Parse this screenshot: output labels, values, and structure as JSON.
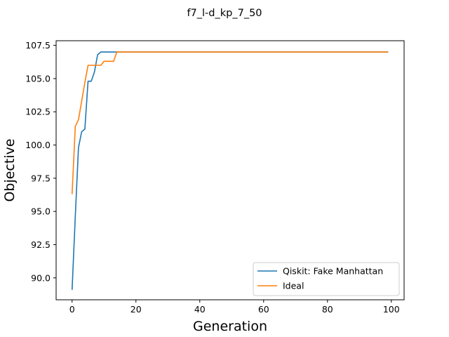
{
  "chart_data": {
    "type": "line",
    "title": "f7_l-d_kp_7_50",
    "xlabel": "Generation",
    "ylabel": "Objective",
    "xlim": [
      -5,
      104
    ],
    "ylim": [
      88.35,
      107.85
    ],
    "xticks": [
      0,
      20,
      40,
      60,
      80,
      100
    ],
    "yticks": [
      90.0,
      92.5,
      95.0,
      97.5,
      100.0,
      102.5,
      105.0,
      107.5
    ],
    "ytick_labels": [
      "90.0",
      "92.5",
      "95.0",
      "97.5",
      "100.0",
      "102.5",
      "105.0",
      "107.5"
    ],
    "grid": false,
    "legend": "lower-right",
    "series": [
      {
        "name": "Qiskit: Fake Manhattan",
        "color": "#1f77b4",
        "x": [
          0,
          1,
          2,
          3,
          4,
          5,
          6,
          7,
          8,
          9,
          10,
          11,
          12,
          13,
          14,
          99
        ],
        "y": [
          89.1,
          94.6,
          99.8,
          101.0,
          101.2,
          104.8,
          104.8,
          105.5,
          106.8,
          107.0,
          107.0,
          107.0,
          107.0,
          107.0,
          107.0,
          107.0
        ]
      },
      {
        "name": "Ideal",
        "color": "#ff7f0e",
        "x": [
          0,
          1,
          2,
          3,
          4,
          5,
          6,
          7,
          8,
          9,
          10,
          11,
          12,
          13,
          14,
          99
        ],
        "y": [
          96.3,
          101.4,
          101.9,
          103.3,
          104.7,
          106.0,
          106.0,
          106.0,
          106.0,
          106.0,
          106.3,
          106.3,
          106.3,
          106.3,
          107.0,
          107.0
        ]
      }
    ]
  }
}
